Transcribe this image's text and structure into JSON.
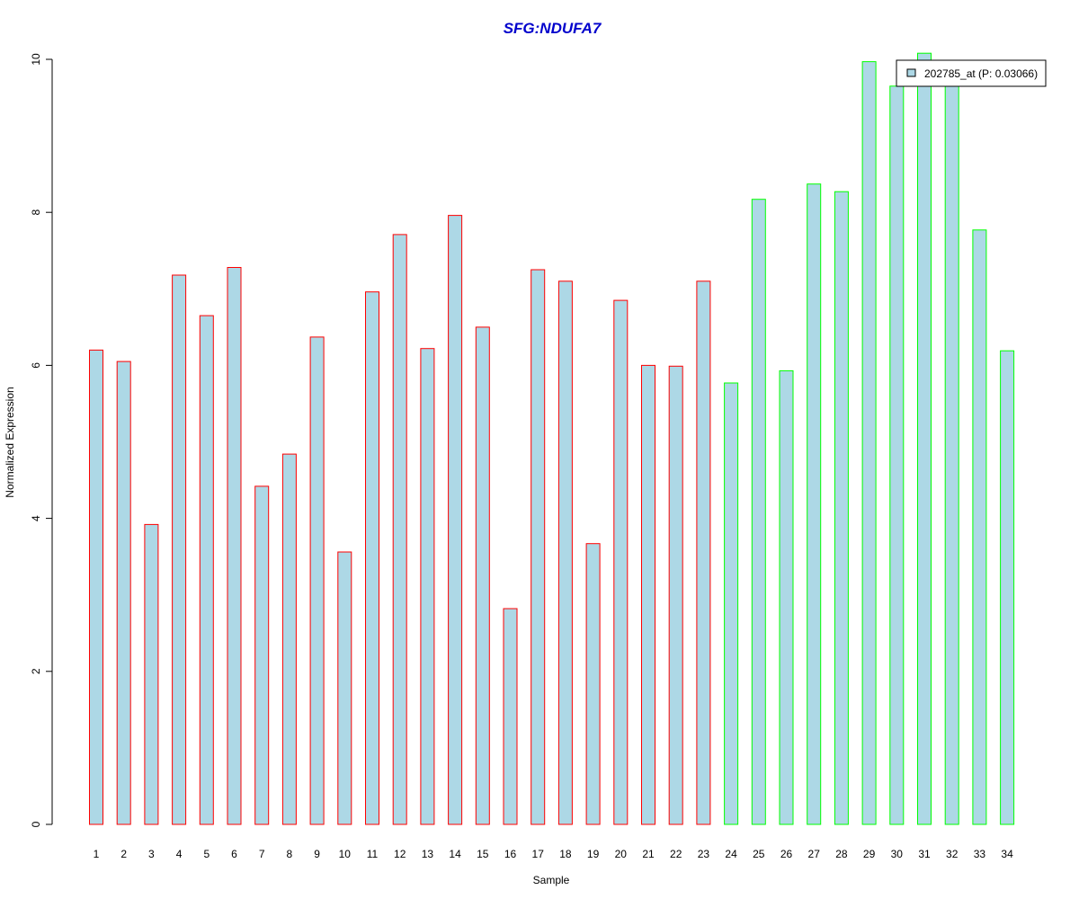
{
  "chart_data": {
    "type": "bar",
    "title": "SFG:NDUFA7",
    "xlabel": "Sample",
    "ylabel": "Normalized Expression",
    "ylim": [
      0,
      10
    ],
    "yticks": [
      0,
      2,
      4,
      6,
      8,
      10
    ],
    "grid": false,
    "legend_position": "top-right",
    "categories": [
      "1",
      "2",
      "3",
      "4",
      "5",
      "6",
      "7",
      "8",
      "9",
      "10",
      "11",
      "12",
      "13",
      "14",
      "15",
      "16",
      "17",
      "18",
      "19",
      "20",
      "21",
      "22",
      "23",
      "24",
      "25",
      "26",
      "27",
      "28",
      "29",
      "30",
      "31",
      "32",
      "33",
      "34"
    ],
    "series": [
      {
        "name": "202785_at (P: 0.03066)",
        "values": [
          6.2,
          6.05,
          3.92,
          7.18,
          6.65,
          7.28,
          4.42,
          4.84,
          6.37,
          3.56,
          6.96,
          7.71,
          6.22,
          7.96,
          6.5,
          2.82,
          7.25,
          7.1,
          3.67,
          6.85,
          6.0,
          5.99,
          7.1,
          5.77,
          8.17,
          5.93,
          8.37,
          8.27,
          9.97,
          9.65,
          10.08,
          9.65,
          7.77,
          6.19
        ],
        "groups": [
          "red",
          "red",
          "red",
          "red",
          "red",
          "red",
          "red",
          "red",
          "red",
          "red",
          "red",
          "red",
          "red",
          "red",
          "red",
          "red",
          "red",
          "red",
          "red",
          "red",
          "red",
          "red",
          "red",
          "green",
          "green",
          "green",
          "green",
          "green",
          "green",
          "green",
          "green",
          "green",
          "green",
          "green"
        ]
      }
    ],
    "colors": {
      "title": "#0000CC",
      "bar_fill": "#ADD8E6",
      "group_red": "#FF0000",
      "group_green": "#00FF00",
      "axis": "#000000"
    }
  }
}
